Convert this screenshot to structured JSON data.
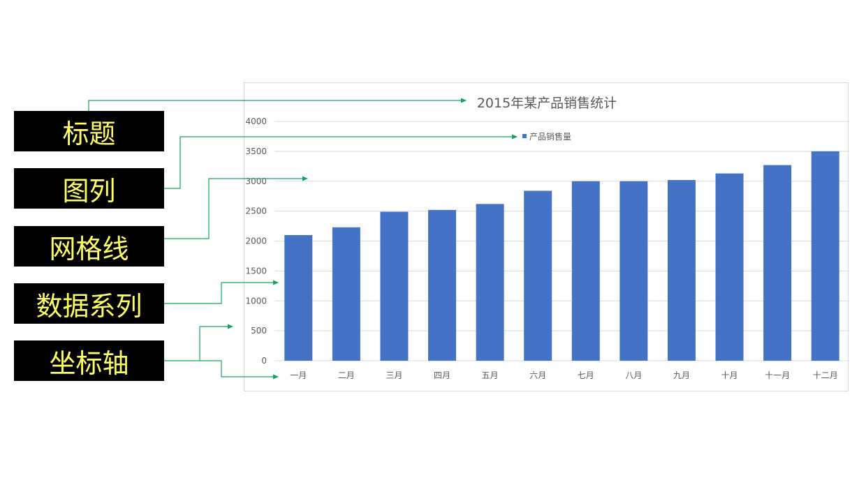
{
  "annotations": [
    {
      "label": "标题"
    },
    {
      "label": "图列"
    },
    {
      "label": "网格线"
    },
    {
      "label": "数据系列"
    },
    {
      "label": "坐标轴"
    }
  ],
  "colors": {
    "bar": "#4472c4",
    "arrow": "#13a35a",
    "label_bg": "#000000",
    "label_text": "#ffff66",
    "grid": "#d9d9d9"
  },
  "chart_data": {
    "type": "bar",
    "title": "2015年某产品销售统计",
    "legend": "top",
    "grid": true,
    "categories": [
      "一月",
      "二月",
      "三月",
      "四月",
      "五月",
      "六月",
      "七月",
      "八月",
      "九月",
      "十月",
      "十一月",
      "十二月"
    ],
    "series": [
      {
        "name": "产品销售量",
        "values": [
          2100,
          2230,
          2490,
          2520,
          2620,
          2840,
          3000,
          3000,
          3020,
          3130,
          3270,
          3500
        ]
      }
    ],
    "ylim": [
      0,
      4000
    ],
    "yticks": [
      0,
      500,
      1000,
      1500,
      2000,
      2500,
      3000,
      3500,
      4000
    ],
    "xlabel": "",
    "ylabel": ""
  }
}
